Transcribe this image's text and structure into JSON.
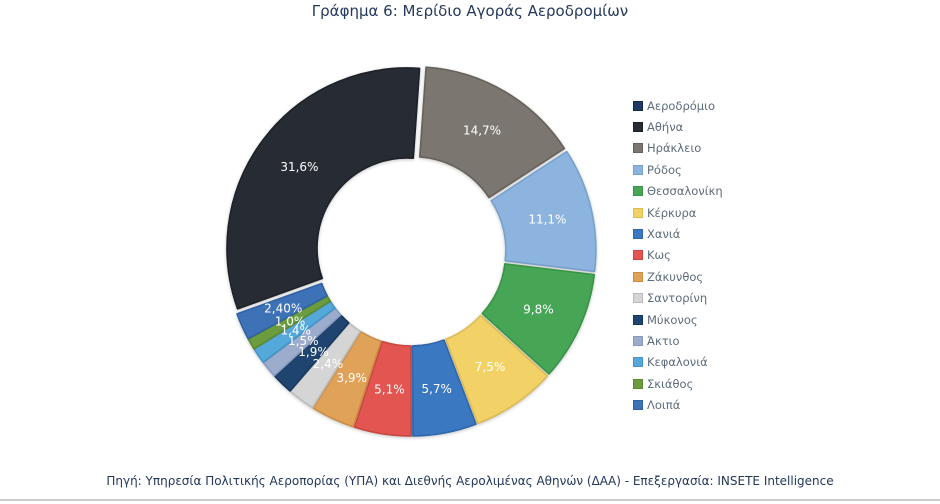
{
  "page": {
    "title": "Γράφημα 6: Μερίδιο Αγοράς Αεροδρομίων",
    "source_note": "Πηγή: Υπηρεσία Πολιτικής Αεροπορίας (ΥΠΑ) και Διεθνής Αερολιμένας Αθηνών (ΔΑΑ) - Επεξεργασία: INSETE Intelligence"
  },
  "style": {
    "background": "#FFFFFF",
    "title_color": "#24395B",
    "legend_text_color": "#5C6B7B",
    "source_text_color": "#22375A",
    "slice_label_color": "#FFFFFF",
    "divider_color": "#C9CBCC"
  },
  "chart_data": {
    "type": "pie",
    "subtype": "doughnut",
    "title": "Γράφημα 6: Μερίδιο Αγοράς Αεροδρομίων",
    "unit": "percent",
    "legend_position": "right",
    "donut_hole_ratio": 0.5,
    "legend_header": {
      "label": "Αεροδρόμιο",
      "color": "#1F3864",
      "border": "#17294A"
    },
    "series": [
      {
        "name": "Αθήνα",
        "value": 31.6,
        "label": "31,6%",
        "color": "#272C34",
        "border": "#1D2128"
      },
      {
        "name": "Ηράκλειο",
        "value": 14.7,
        "label": "14,7%",
        "color": "#7B7670",
        "border": "#66615B"
      },
      {
        "name": "Ρόδος",
        "value": 11.1,
        "label": "11,1%",
        "color": "#8DB4DE",
        "border": "#76A1CF"
      },
      {
        "name": "Θεσσαλονίκη",
        "value": 9.8,
        "label": "9,8%",
        "color": "#46A656",
        "border": "#389447"
      },
      {
        "name": "Κέρκυρα",
        "value": 7.5,
        "label": "7,5%",
        "color": "#F2D266",
        "border": "#DDBC52"
      },
      {
        "name": "Χανιά",
        "value": 5.7,
        "label": "5,7%",
        "color": "#3B78C2",
        "border": "#2E66AB"
      },
      {
        "name": "Κως",
        "value": 5.1,
        "label": "5,1%",
        "color": "#E25551",
        "border": "#C94641"
      },
      {
        "name": "Ζάκυνθος",
        "value": 3.9,
        "label": "3,9%",
        "color": "#E0A159",
        "border": "#CC8D45"
      },
      {
        "name": "Σαντορίνη",
        "value": 2.4,
        "label": "2,4%",
        "color": "#D5D5D5",
        "border": "#BCBCBC"
      },
      {
        "name": "Μύκονος",
        "value": 1.9,
        "label": "1,9%",
        "color": "#1F4470",
        "border": "#17385E"
      },
      {
        "name": "Άκτιο",
        "value": 1.5,
        "label": "1,5%",
        "color": "#9BACCD",
        "border": "#8799BE"
      },
      {
        "name": "Κεφαλονιά",
        "value": 1.4,
        "label": "1,4%",
        "color": "#55A8DA",
        "border": "#4394C8"
      },
      {
        "name": "Σκιάθος",
        "value": 1.0,
        "label": "1,0%",
        "color": "#6B9C3E",
        "border": "#5B8A31"
      },
      {
        "name": "Λοιπά",
        "value": 2.4,
        "label": "2,40%",
        "color": "#3D72B7",
        "border": "#3162A3"
      }
    ]
  }
}
